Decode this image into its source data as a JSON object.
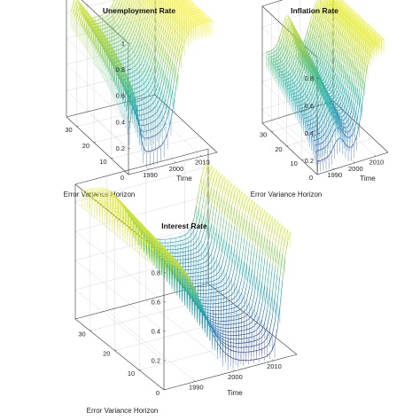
{
  "chart_data": [
    {
      "type": "surface",
      "title": "Unemployment Rate",
      "xlabel": "Time",
      "ylabel": "Error Variance Horizon",
      "zlabel": "",
      "xticks": [
        "1990",
        "2000",
        "2010"
      ],
      "yticks": [
        "0",
        "10",
        "20",
        "30"
      ],
      "zticks": [
        "0.2",
        "0.4",
        "0.6",
        "0.8",
        "1"
      ],
      "xlim": [
        1982,
        2016
      ],
      "ylim": [
        0,
        36
      ],
      "zlim": [
        0,
        1
      ],
      "colormap": [
        "#3e2686",
        "#2b7bb9",
        "#27b3a7",
        "#a9d34a",
        "#fcf421"
      ],
      "grid": true,
      "z_shape": {
        "horizon_1_level": 0.12,
        "horizon_max_level": 0.72,
        "early_hump_level": 0.9,
        "end_plateau_level": 1.0
      }
    },
    {
      "type": "surface",
      "title": "Inflation Rate",
      "xlabel": "Time",
      "ylabel": "Error Variance Horizon",
      "zlabel": "",
      "xticks": [
        "1990",
        "2000",
        "2010"
      ],
      "yticks": [
        "0",
        "10",
        "20",
        "30"
      ],
      "zticks": [
        "0.2",
        "0.4",
        "0.6",
        "0.8"
      ],
      "xlim": [
        1982,
        2016
      ],
      "ylim": [
        0,
        36
      ],
      "zlim": [
        0.1,
        0.95
      ],
      "colormap": [
        "#3e2686",
        "#2b7bb9",
        "#27b3a7",
        "#a9d34a",
        "#fcf421"
      ],
      "grid": true,
      "z_shape": {
        "horizon_1_level": 0.18,
        "horizon_max_level": 0.62,
        "early_hump_level": 0.6,
        "end_plateau_level": 0.92
      }
    },
    {
      "type": "surface",
      "title": "Interest Rate",
      "xlabel": "Time",
      "ylabel": "Error Variance Horizon",
      "zlabel": "",
      "xticks": [
        "1990",
        "2000",
        "2010"
      ],
      "yticks": [
        "0",
        "10",
        "20",
        "30"
      ],
      "zticks": [
        "0.2",
        "0.4",
        "0.6",
        "0.8"
      ],
      "xlim": [
        1982,
        2016
      ],
      "ylim": [
        0,
        36
      ],
      "zlim": [
        0,
        0.92
      ],
      "colormap": [
        "#3e2686",
        "#2b7bb9",
        "#27b3a7",
        "#a9d34a",
        "#fcf421"
      ],
      "grid": true,
      "z_shape": {
        "horizon_1_level": 0.05,
        "horizon_max_level": 0.85,
        "early_plateau_level": 0.88,
        "end_spike_level": 0.88
      }
    }
  ]
}
